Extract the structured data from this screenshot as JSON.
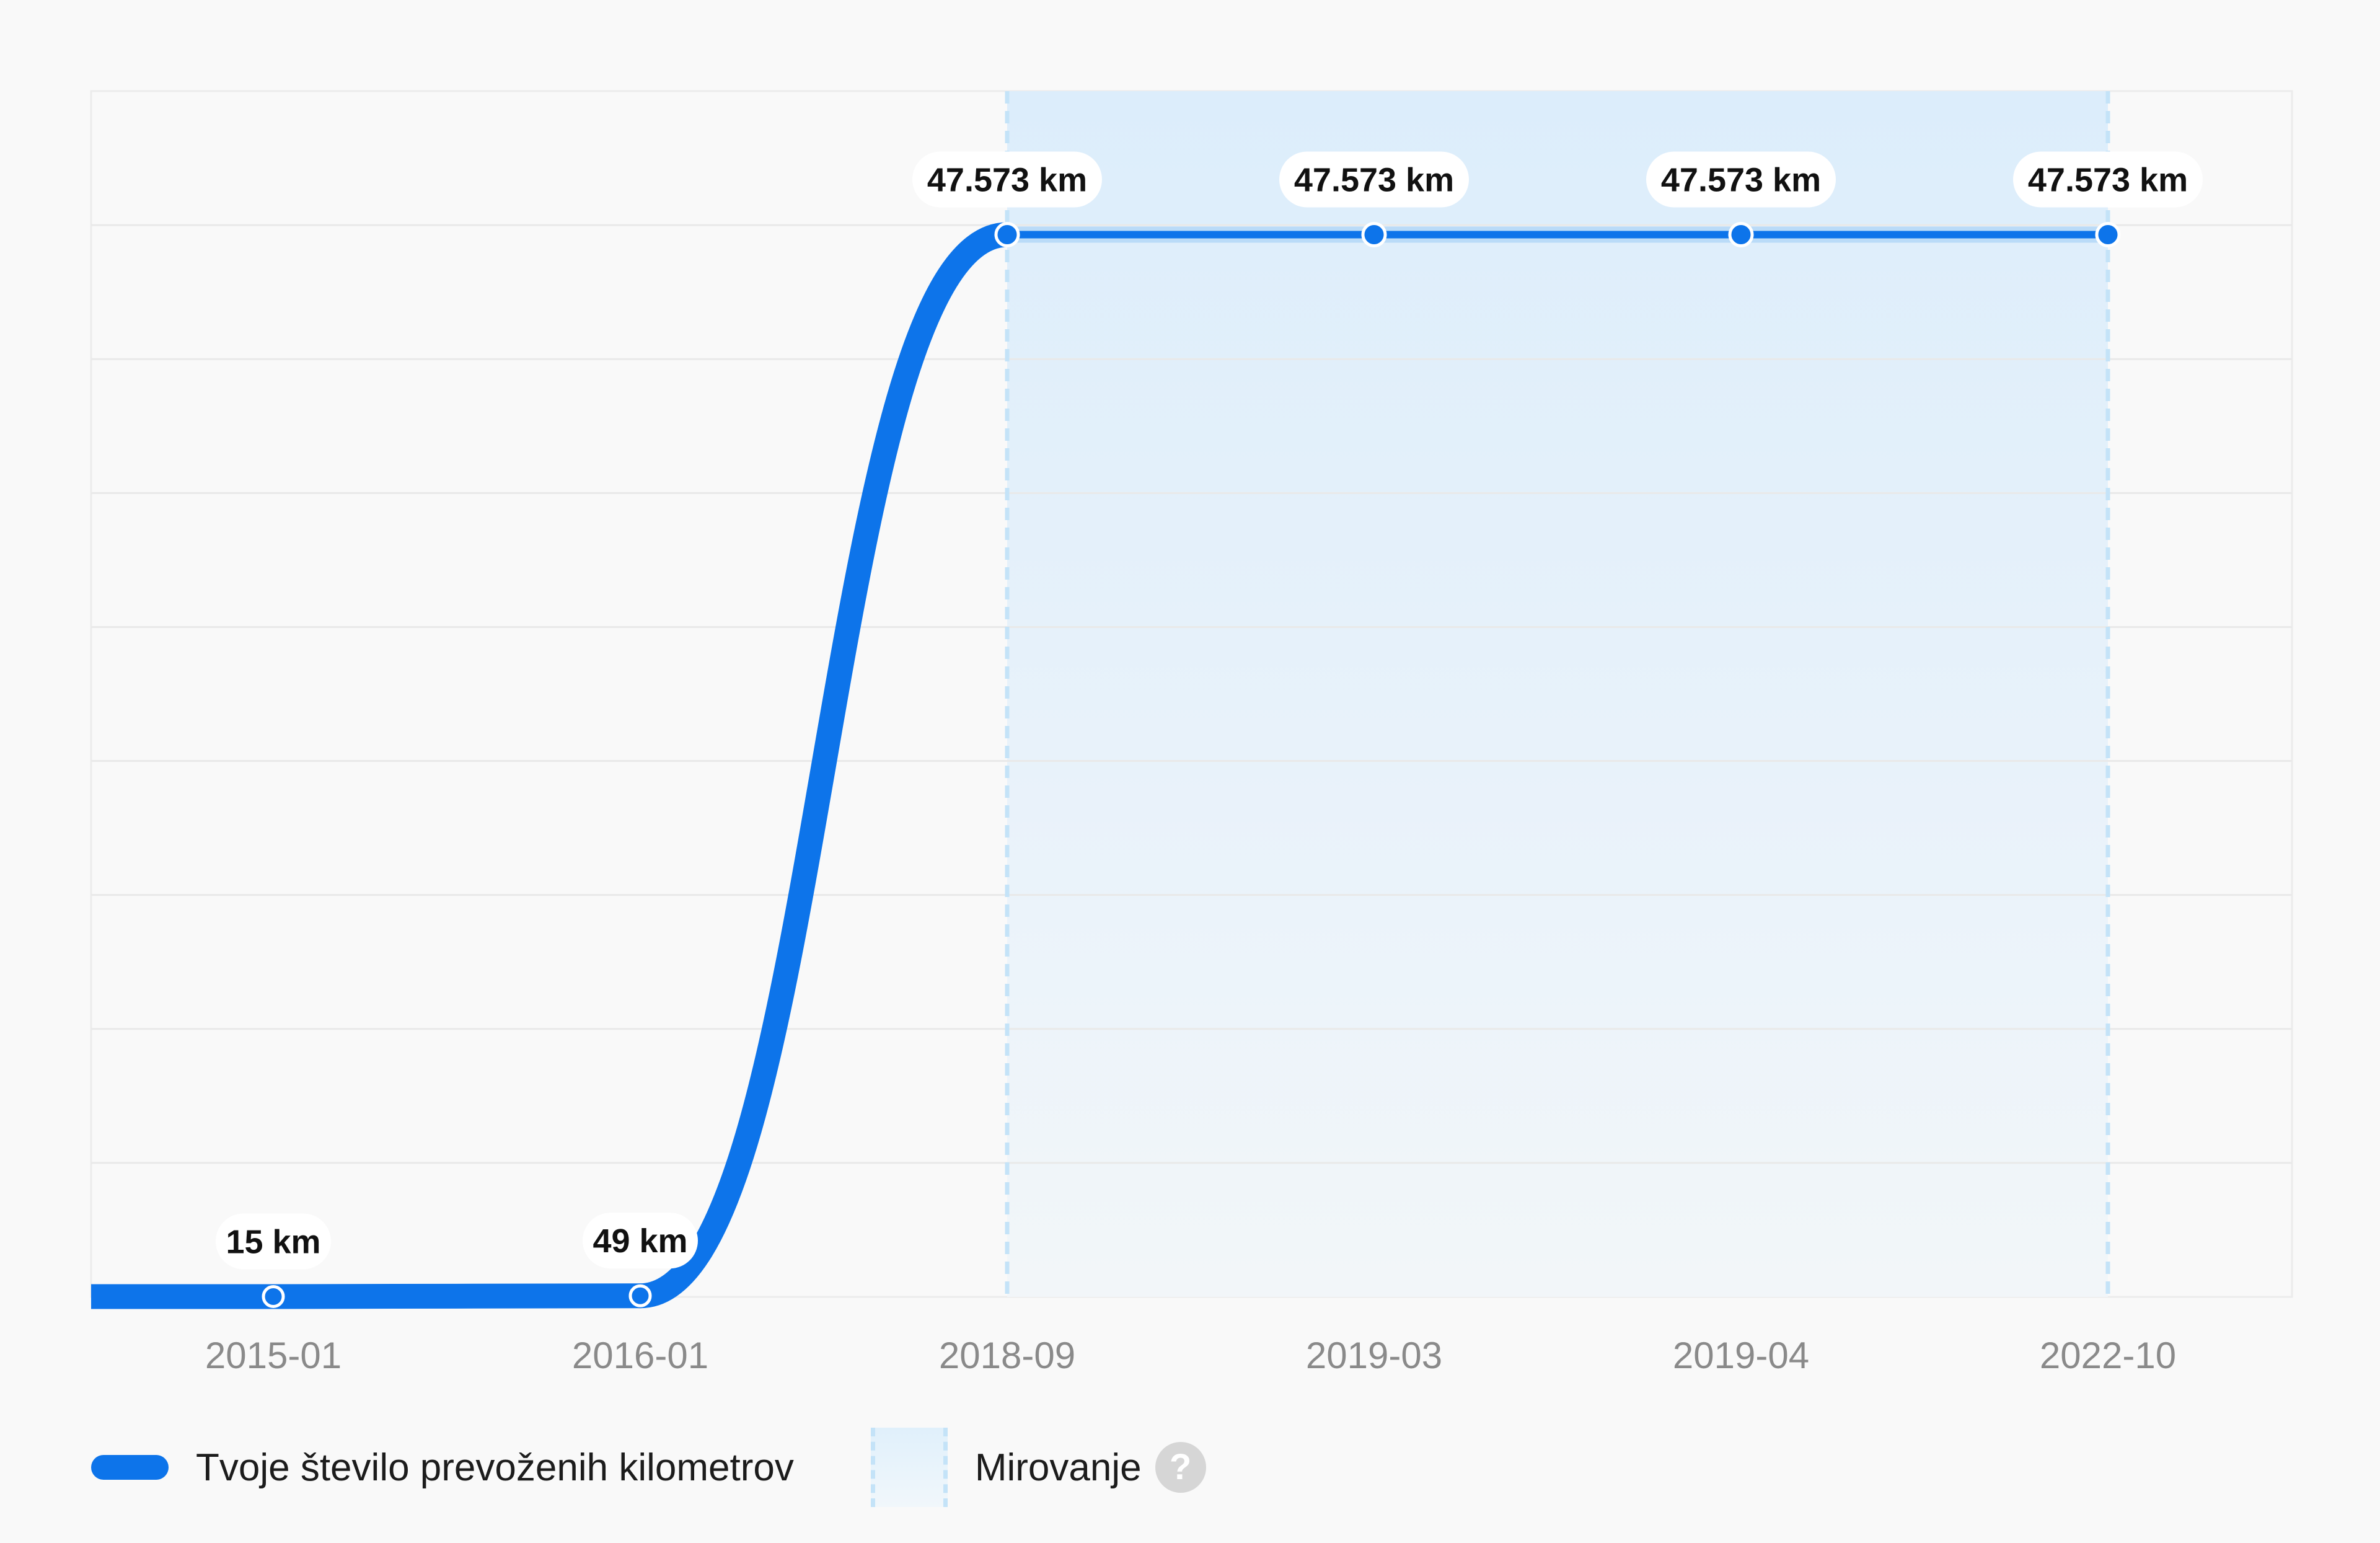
{
  "chart_data": {
    "type": "line",
    "title": "",
    "xlabel": "",
    "ylabel": "",
    "categories": [
      "2015-01",
      "2016-01",
      "2018-09",
      "2019-03",
      "2019-04",
      "2022-10"
    ],
    "series": [
      {
        "name": "Tvoje število prevoženih kilometrov",
        "values": [
          15,
          49,
          47573,
          47573,
          47573,
          47573
        ],
        "labels": [
          "15 km",
          "49 km",
          "47.573 km",
          "47.573 km",
          "47.573 km",
          "47.573 km"
        ],
        "color": "#0d74ea"
      }
    ],
    "ylim": [
      0,
      54000
    ],
    "grid": true,
    "shaded_region": {
      "name": "Mirovanje",
      "from": "2018-09",
      "to": "2022-10",
      "color": "#e3f1fb"
    },
    "legend": {
      "position": "bottom-left",
      "items": [
        {
          "label": "Tvoje število prevoženih kilometrov",
          "kind": "line"
        },
        {
          "label": "Mirovanje",
          "kind": "area",
          "help_icon": "question-mark-icon",
          "help_glyph": "?"
        }
      ]
    }
  }
}
